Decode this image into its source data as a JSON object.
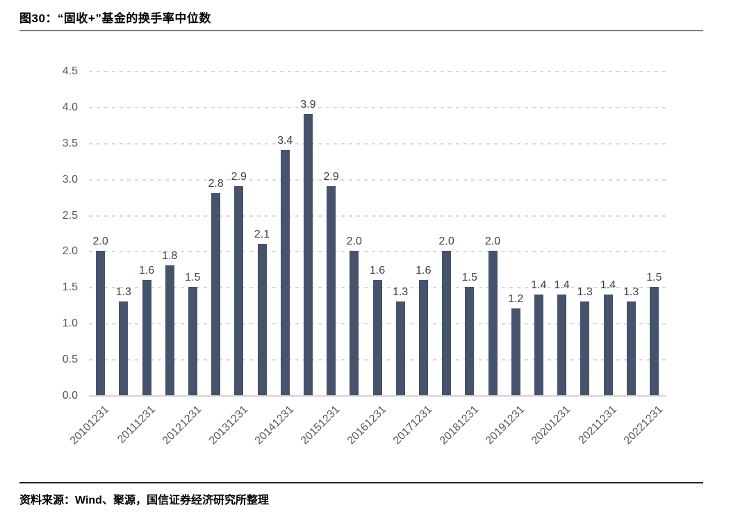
{
  "figure": {
    "title": "图30：“固收+”基金的换手率中位数"
  },
  "source": {
    "text": "资料来源：Wind、聚源，国信证券经济研究所整理"
  },
  "chart_data": {
    "type": "bar",
    "title": "图30：“固收+”基金的换手率中位数",
    "categories": [
      "20101231",
      "",
      "20111231",
      "",
      "20121231",
      "",
      "20131231",
      "",
      "20141231",
      "",
      "20151231",
      "",
      "20161231",
      "",
      "20171231",
      "",
      "20181231",
      "",
      "20191231",
      "",
      "20201231",
      "",
      "20211231",
      "",
      "20221231"
    ],
    "values": [
      2.0,
      1.3,
      1.6,
      1.8,
      1.5,
      2.8,
      2.9,
      2.1,
      3.4,
      3.9,
      2.9,
      2.0,
      1.6,
      1.3,
      1.6,
      2.0,
      1.5,
      2.0,
      1.2,
      1.4,
      1.4,
      1.3,
      1.4,
      1.3,
      1.5
    ],
    "bar_labels": [
      "2.0",
      "1.3",
      "1.6",
      "1.8",
      "1.5",
      "2.8",
      "2.9",
      "2.1",
      "3.4",
      "3.9",
      "2.9",
      "2.0",
      "1.6",
      "1.3",
      "1.6",
      "2.0",
      "1.5",
      "2.0",
      "1.2",
      "1.4",
      "1.4",
      "1.3",
      "1.4",
      "1.3",
      "1.5"
    ],
    "xlabel": "",
    "ylabel": "",
    "ylim": [
      0,
      4.5
    ],
    "y_ticks": [
      "0.0",
      "0.5",
      "1.0",
      "1.5",
      "2.0",
      "2.5",
      "3.0",
      "3.5",
      "4.0",
      "4.5"
    ],
    "grid": "dashed-horizontal",
    "legend": "none",
    "bar_color": "#45536c",
    "grid_color": "#d9d9d9",
    "tick_label_color": "#595959",
    "value_label_color": "#3f3f3f"
  }
}
